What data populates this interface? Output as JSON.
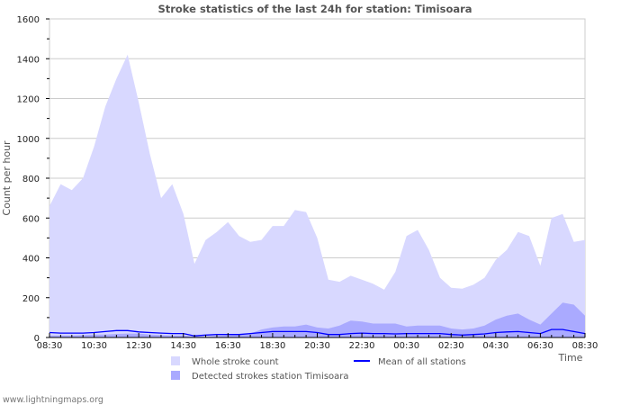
{
  "chart_data": {
    "type": "area",
    "title": "Stroke statistics of the last 24h for station: Timisoara",
    "ylabel": "Count per hour",
    "xlabel": "Time",
    "ylim": [
      0,
      1600
    ],
    "yticks": [
      0,
      200,
      400,
      600,
      800,
      1000,
      1200,
      1400,
      1600
    ],
    "xticks": [
      "08:30",
      "10:30",
      "12:30",
      "14:30",
      "16:30",
      "18:30",
      "20:30",
      "22:30",
      "00:30",
      "02:30",
      "04:30",
      "06:30",
      "08:30"
    ],
    "interval_minutes": 30,
    "series": [
      {
        "name": "Whole stroke count",
        "type": "area",
        "color": "#d8d8ff",
        "values": [
          660,
          770,
          740,
          800,
          960,
          1160,
          1300,
          1420,
          1180,
          920,
          700,
          770,
          620,
          370,
          490,
          530,
          580,
          510,
          480,
          490,
          560,
          560,
          640,
          630,
          500,
          290,
          280,
          310,
          290,
          270,
          240,
          330,
          510,
          540,
          440,
          300,
          250,
          245,
          265,
          300,
          390,
          440,
          530,
          510,
          360,
          600,
          620,
          480,
          490
        ]
      },
      {
        "name": "Detected strokes station Timisoara",
        "type": "area",
        "color": "#aaaaff",
        "values": [
          10,
          10,
          10,
          12,
          15,
          15,
          18,
          20,
          20,
          15,
          12,
          10,
          10,
          5,
          5,
          8,
          10,
          15,
          20,
          40,
          50,
          55,
          55,
          65,
          50,
          45,
          60,
          85,
          80,
          70,
          70,
          70,
          55,
          60,
          60,
          60,
          45,
          40,
          45,
          60,
          90,
          110,
          120,
          90,
          65,
          120,
          175,
          165,
          110
        ]
      },
      {
        "name": "Mean of all stations",
        "type": "line",
        "color": "#0000ff",
        "values": [
          25,
          22,
          22,
          22,
          25,
          30,
          35,
          35,
          28,
          25,
          22,
          20,
          20,
          8,
          12,
          15,
          15,
          15,
          20,
          25,
          30,
          30,
          30,
          30,
          25,
          15,
          15,
          20,
          22,
          20,
          20,
          18,
          20,
          20,
          20,
          20,
          15,
          12,
          15,
          18,
          25,
          28,
          30,
          25,
          20,
          40,
          40,
          30,
          20
        ]
      }
    ]
  },
  "footer": "www.lightningmaps.org"
}
